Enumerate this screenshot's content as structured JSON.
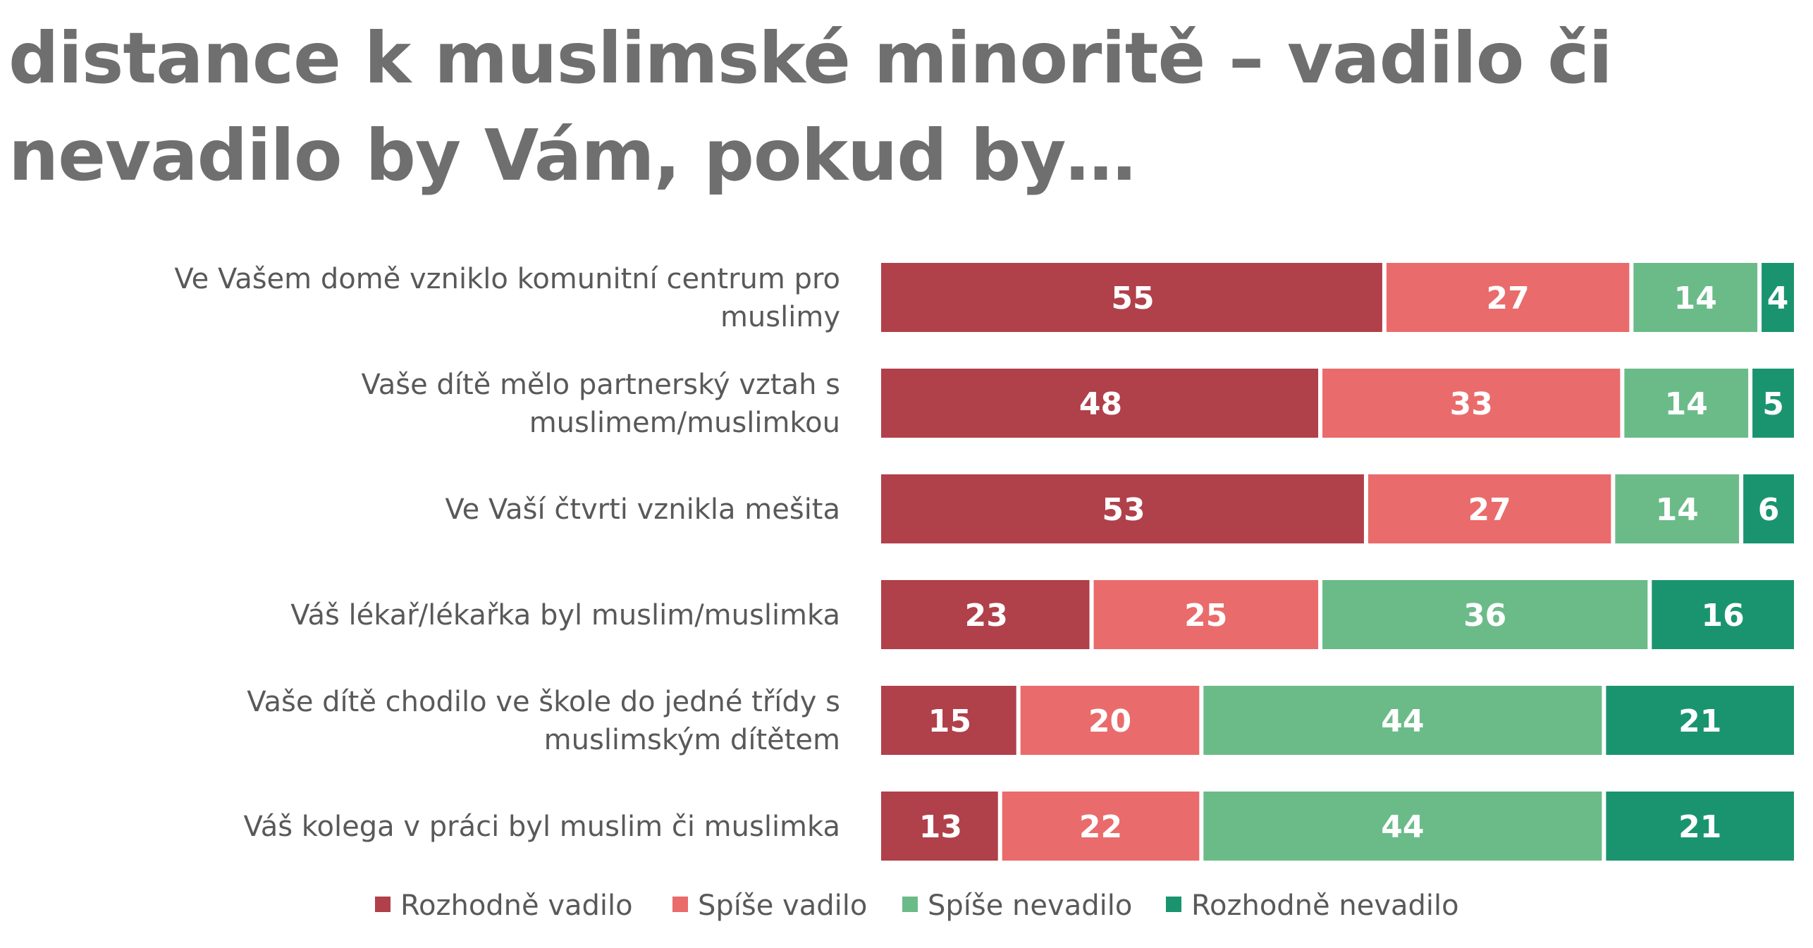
{
  "chart_data": {
    "type": "bar",
    "orientation": "horizontal",
    "stacked": true,
    "title": "distance k muslimské minoritě – vadilo či nevadilo by Vám, pokud by…",
    "categories": [
      "Ve Vašem domě vzniklo komunitní centrum pro muslimy",
      "Vaše dítě mělo partnerský vztah s muslimem/muslimkou",
      "Ve Vaší čtvrti vznikla mešita",
      "Váš lékař/lékařka byl muslim/muslimka",
      "Vaše dítě chodilo ve škole do jedné třídy s muslimským dítětem",
      "Váš kolega v práci byl muslim či muslimka"
    ],
    "series": [
      {
        "name": "Rozhodně vadilo",
        "color": "#b0404a",
        "values": [
          55,
          48,
          53,
          23,
          15,
          13
        ]
      },
      {
        "name": "Spíše vadilo",
        "color": "#ea6b6b",
        "values": [
          27,
          33,
          27,
          25,
          20,
          22
        ]
      },
      {
        "name": "Spíše nevadilo",
        "color": "#6bbb89",
        "values": [
          14,
          14,
          14,
          36,
          44,
          44
        ]
      },
      {
        "name": "Rozhodně nevadilo",
        "color": "#1a946f",
        "values": [
          4,
          5,
          6,
          16,
          21,
          21
        ]
      }
    ],
    "xlim": [
      0,
      100
    ],
    "legend_position": "bottom",
    "grid": false
  }
}
